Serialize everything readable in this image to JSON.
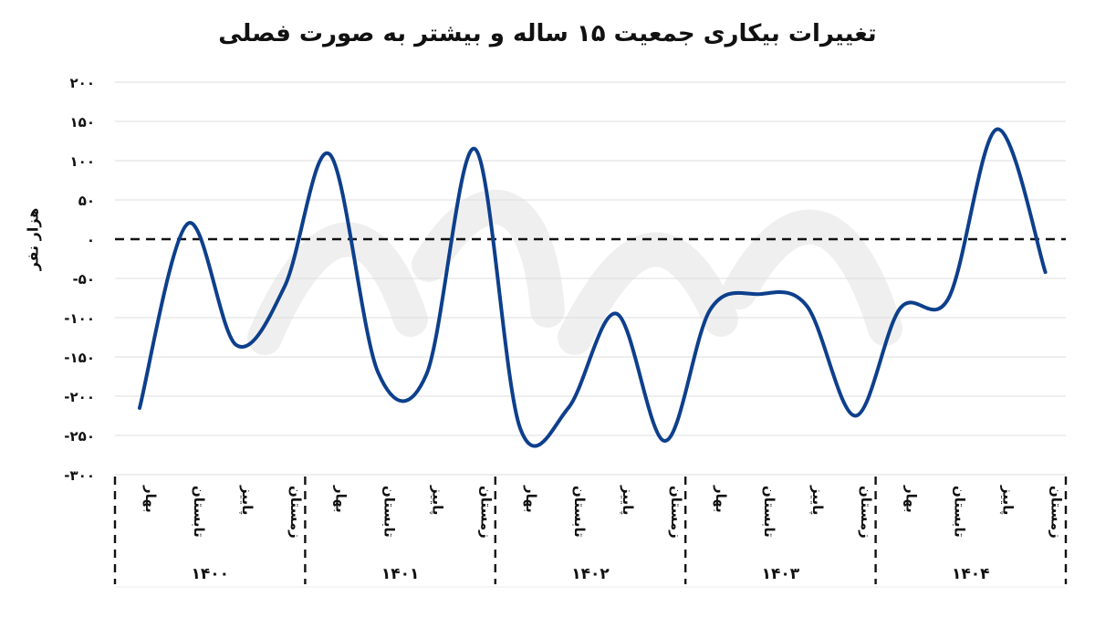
{
  "chart_data": {
    "type": "line",
    "title": "تغییرات بیکاری جمعیت ۱۵ ساله و بیشتر به صورت فصلی",
    "ylabel": "هزار نفر",
    "xlabel": "",
    "ylim": [
      -300,
      200
    ],
    "y_ticks": [
      200,
      150,
      100,
      50,
      0,
      -50,
      -100,
      -150,
      -200,
      -250,
      -300
    ],
    "y_tick_labels": [
      "۲۰۰",
      "۱۵۰",
      "۱۰۰",
      "۵۰",
      "۰",
      "-۵۰",
      "-۱۰۰",
      "-۱۵۰",
      "-۲۰۰",
      "-۲۵۰",
      "-۳۰۰"
    ],
    "grid": true,
    "zero_line": "dashed",
    "series_color": "#0d3f8c",
    "groups": [
      {
        "year": "۱۴۰۰",
        "seasons": [
          "بهار",
          "تابستان",
          "پاییز",
          "زمستان"
        ]
      },
      {
        "year": "۱۴۰۱",
        "seasons": [
          "بهار",
          "تابستان",
          "پاییز",
          "زمستان"
        ]
      },
      {
        "year": "۱۴۰۲",
        "seasons": [
          "بهار",
          "تابستان",
          "پاییز",
          "زمستان"
        ]
      },
      {
        "year": "۱۴۰۳",
        "seasons": [
          "بهار",
          "تابستان",
          "پاییز",
          "زمستان"
        ]
      },
      {
        "year": "۱۴۰۴",
        "seasons": [
          "بهار",
          "تابستان",
          "پاییز",
          "زمستان"
        ]
      }
    ],
    "series": [
      {
        "values": [
          -215,
          20,
          -135,
          -60,
          108,
          -170,
          -172,
          115,
          -240,
          -215,
          -95,
          -257,
          -90,
          -70,
          -85,
          -225,
          -88,
          -75,
          140,
          -42
        ]
      }
    ]
  }
}
